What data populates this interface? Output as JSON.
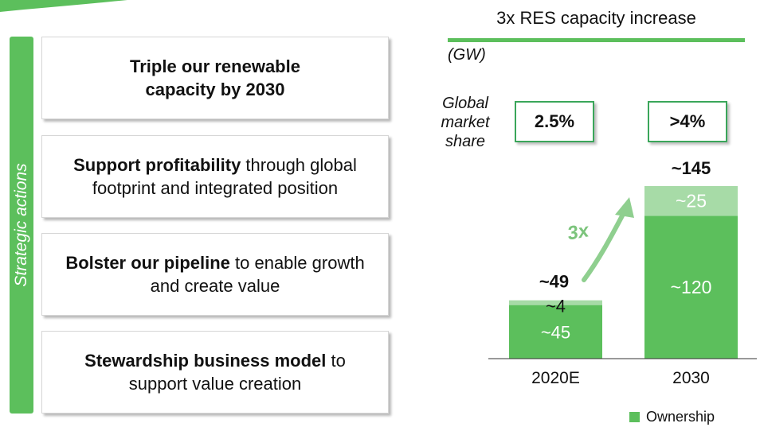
{
  "side_label": "Strategic actions",
  "actions": [
    {
      "bold": "Triple our renewable capacity by 2030",
      "rest": ""
    },
    {
      "bold": "Support profitability",
      "rest": " through global footprint and integrated position"
    },
    {
      "bold": "Bolster our pipeline",
      "rest": " to enable growth and create value"
    },
    {
      "bold": "Stewardship business model",
      "rest": " to support value creation"
    }
  ],
  "global_market_share": {
    "label": "Global market share",
    "values": [
      "2.5%",
      ">4%"
    ]
  },
  "colors": {
    "ownership": "#5cbf5c",
    "other": "#a7dba7",
    "accent_line": "#5cbf5c",
    "box_border": "#3aa65a"
  },
  "chart_data": {
    "type": "bar",
    "stacked": true,
    "title": "3x RES capacity increase",
    "unit": "(GW)",
    "categories": [
      "2020E",
      "2030"
    ],
    "series": [
      {
        "name": "Ownership",
        "values": [
          45,
          120
        ],
        "labels": [
          "~45",
          "~120"
        ]
      },
      {
        "values": [
          4,
          25
        ],
        "labels": [
          "~4",
          "~25"
        ]
      }
    ],
    "totals": [
      49,
      145
    ],
    "total_labels": [
      "~49",
      "~145"
    ],
    "growth_annotation": "3x",
    "legend": {
      "position": "bottom-right",
      "entries": [
        "Ownership"
      ]
    }
  }
}
